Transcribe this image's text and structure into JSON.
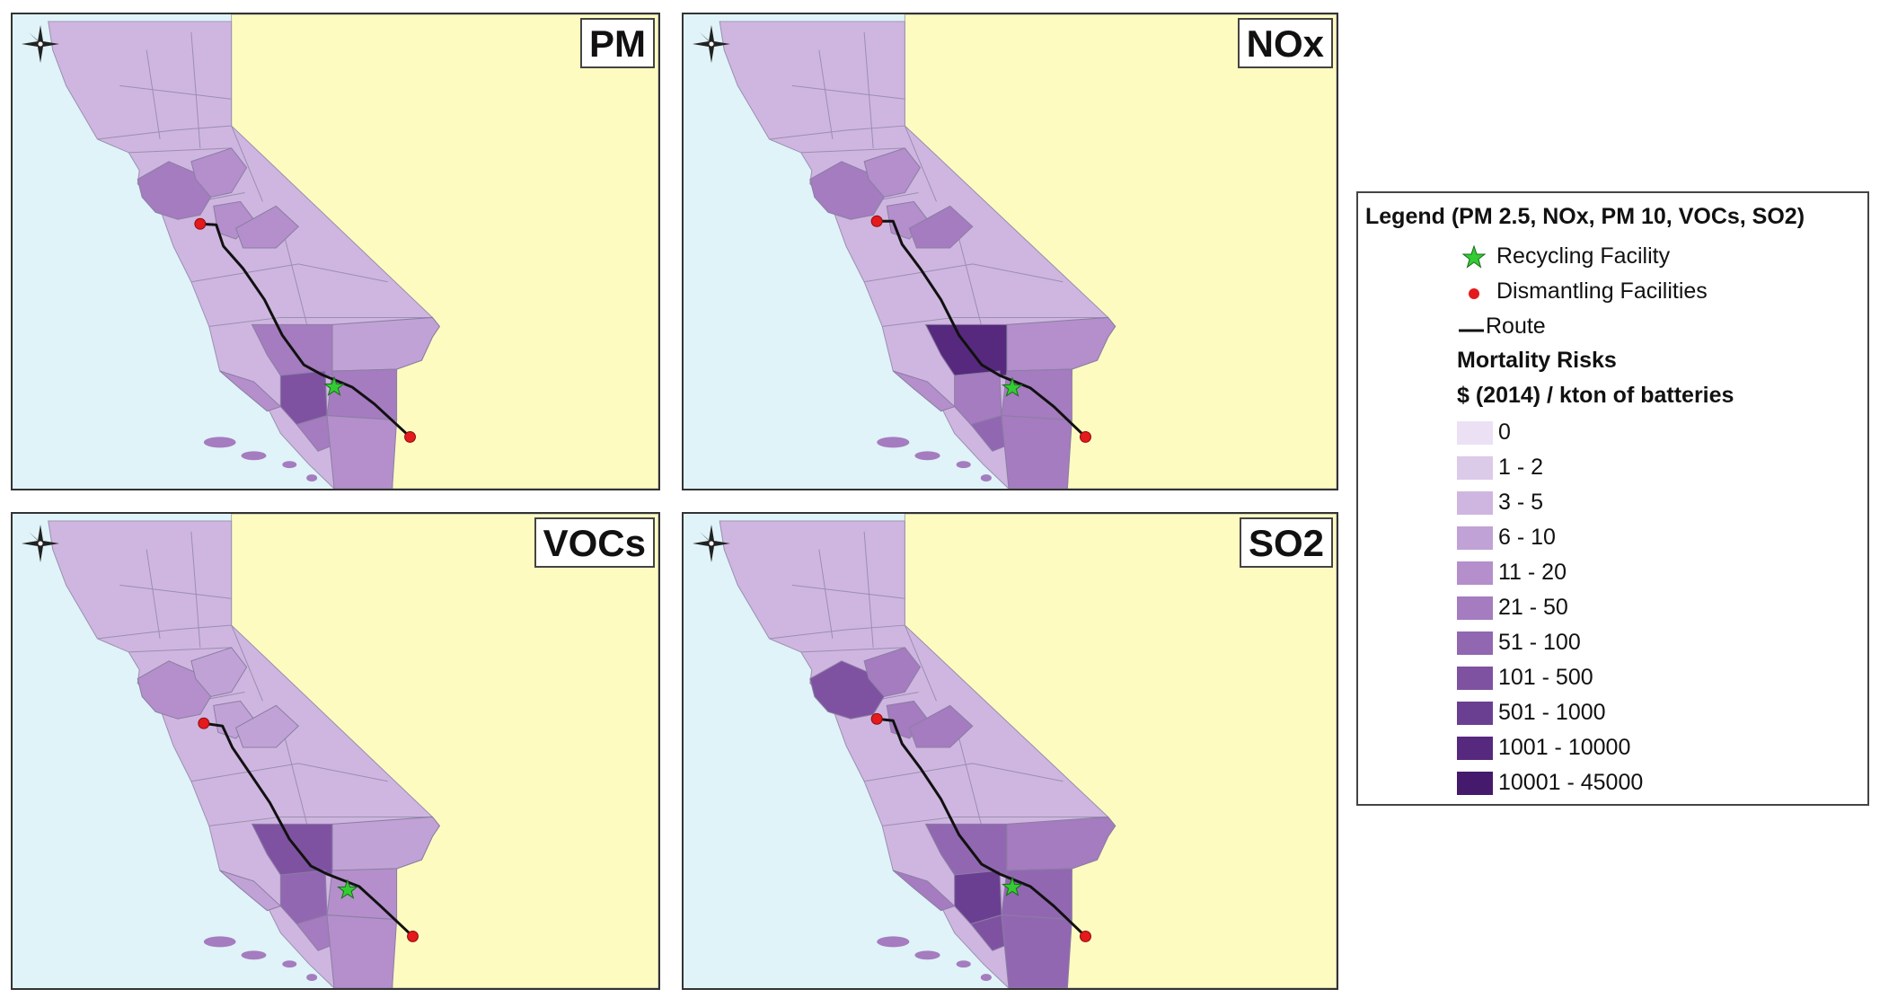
{
  "panels": [
    {
      "id": "pm",
      "title": "PM"
    },
    {
      "id": "nox",
      "title": "NOx"
    },
    {
      "id": "vocs",
      "title": "VOCs"
    },
    {
      "id": "so2",
      "title": "SO2"
    }
  ],
  "legend": {
    "title": "Legend (PM 2.5, NOx, PM 10, VOCs, SO2)",
    "items": [
      {
        "label": "Recycling Facility",
        "symbol": "star-icon",
        "color": "#33cc33"
      },
      {
        "label": "Dismantling Facilities",
        "symbol": "dot-icon",
        "color": "#e41a1c"
      },
      {
        "label": "Route",
        "symbol": "line-icon",
        "color": "#111111"
      }
    ],
    "heading": "Mortality Risks",
    "units": "$ (2014) / kton of batteries",
    "classes": [
      {
        "label": "0",
        "color": "#ece0f5"
      },
      {
        "label": "1 - 2",
        "color": "#dccae9"
      },
      {
        "label": "3 - 5",
        "color": "#cfb6e0"
      },
      {
        "label": "6 - 10",
        "color": "#c1a2d6"
      },
      {
        "label": "11 - 20",
        "color": "#b48fcb"
      },
      {
        "label": "21 - 50",
        "color": "#a57cbf"
      },
      {
        "label": "51 - 100",
        "color": "#9267b1"
      },
      {
        "label": "101 - 500",
        "color": "#7e52a1"
      },
      {
        "label": "501 - 1000",
        "color": "#6a3f91"
      },
      {
        "label": "1001 - 10000",
        "color": "#56297e"
      },
      {
        "label": "10001 - 45000",
        "color": "#45196b"
      }
    ]
  }
}
